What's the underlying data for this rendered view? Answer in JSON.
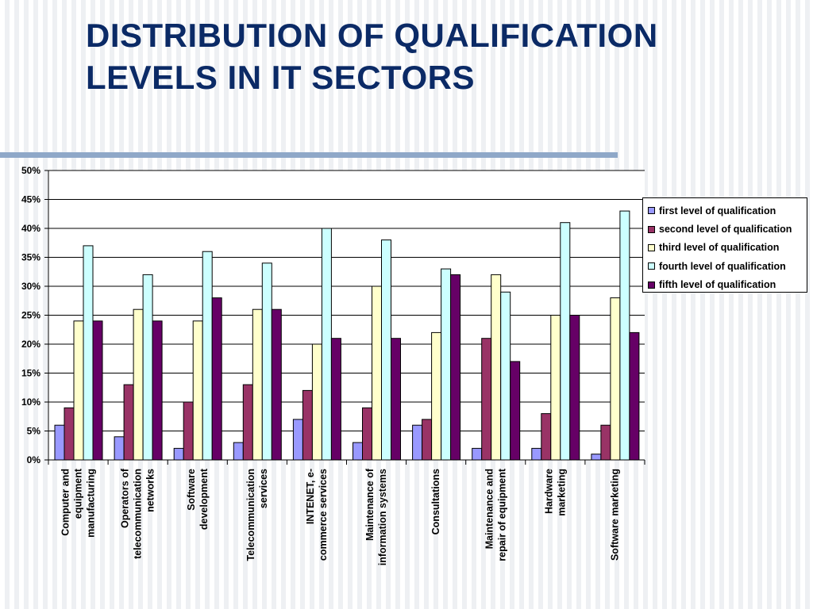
{
  "title": "DISTRIBUTION OF QUALIFICATION LEVELS IN IT SECTORS",
  "chart_data": {
    "type": "bar",
    "title": "",
    "xlabel": "",
    "ylabel": "",
    "ylim": [
      0,
      50
    ],
    "yticks": [
      "0%",
      "5%",
      "10%",
      "15%",
      "20%",
      "25%",
      "30%",
      "35%",
      "40%",
      "45%",
      "50%"
    ],
    "grid": true,
    "legend_position": "right",
    "categories": [
      "Computer and equipment manufacturing",
      "Operators of telecommunication networks",
      "Software development",
      "Telecommunication services",
      "INTENET, e-commerce services",
      "Maintenance of information systems",
      "Consultations",
      "Maintenance and repair of equipment",
      "Hardware marketing",
      "Software marketing"
    ],
    "category_lines": [
      [
        "Computer and",
        "equipment",
        "manufacturing"
      ],
      [
        "Operators of",
        "telecommunication",
        "networks"
      ],
      [
        "Software",
        "development"
      ],
      [
        "Telecommunication",
        "services"
      ],
      [
        "INTENET, e-",
        "commerce services"
      ],
      [
        "Maintenance of",
        "information systems"
      ],
      [
        "Consultations"
      ],
      [
        "Maintenance and",
        "repair of equipment"
      ],
      [
        "Hardware",
        "marketing"
      ],
      [
        "Software marketing"
      ]
    ],
    "series": [
      {
        "name": "first level of qualification",
        "color": "#9999ff",
        "values": [
          6,
          4,
          2,
          3,
          7,
          3,
          6,
          2,
          2,
          1
        ]
      },
      {
        "name": "second level of qualification",
        "color": "#993366",
        "values": [
          9,
          13,
          10,
          13,
          12,
          9,
          7,
          21,
          8,
          6
        ]
      },
      {
        "name": "third level of qualification",
        "color": "#ffffcc",
        "values": [
          24,
          26,
          24,
          26,
          20,
          30,
          22,
          32,
          25,
          28
        ]
      },
      {
        "name": "fourth level of qualification",
        "color": "#ccffff",
        "values": [
          37,
          32,
          36,
          34,
          40,
          38,
          33,
          29,
          41,
          43
        ]
      },
      {
        "name": "fifth level of qualification",
        "color": "#660066",
        "values": [
          24,
          24,
          28,
          26,
          21,
          21,
          32,
          17,
          25,
          22
        ]
      }
    ]
  }
}
